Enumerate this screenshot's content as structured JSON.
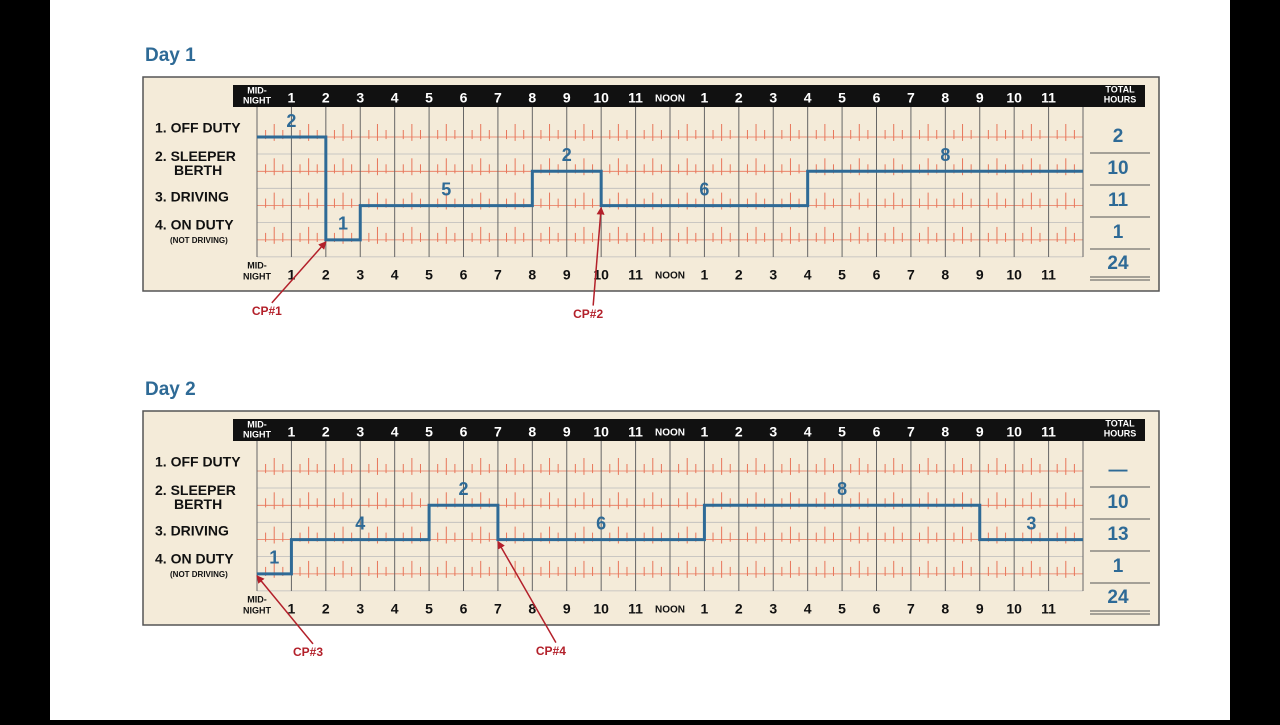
{
  "grid": {
    "midnight": [
      "MID-",
      "NIGHT"
    ],
    "hour_labels": [
      1,
      2,
      3,
      4,
      5,
      6,
      7,
      8,
      9,
      10,
      11,
      "NOON",
      1,
      2,
      3,
      4,
      5,
      6,
      7,
      8,
      9,
      10,
      11
    ],
    "total_header": [
      "TOTAL",
      "HOURS"
    ],
    "rows": [
      [
        "1. OFF DUTY"
      ],
      [
        "2. SLEEPER",
        "BERTH"
      ],
      [
        "3. DRIVING"
      ],
      [
        "4. ON DUTY",
        "(NOT DRIVING)"
      ]
    ]
  },
  "days": [
    {
      "title": "Day 1",
      "segments": [
        {
          "row": 0,
          "hours": 2
        },
        {
          "row": 3,
          "hours": 1
        },
        {
          "row": 2,
          "hours": 5
        },
        {
          "row": 1,
          "hours": 2
        },
        {
          "row": 2,
          "hours": 6
        },
        {
          "row": 1,
          "hours": 8
        }
      ],
      "totals": [
        2,
        10,
        11,
        1
      ],
      "total": 24,
      "callouts": [
        {
          "label": "CP#1",
          "hour": 2,
          "row": 3
        },
        {
          "label": "CP#2",
          "hour": 10,
          "row": 2
        }
      ]
    },
    {
      "title": "Day 2",
      "segments": [
        {
          "row": 3,
          "hours": 1
        },
        {
          "row": 2,
          "hours": 4
        },
        {
          "row": 1,
          "hours": 2
        },
        {
          "row": 2,
          "hours": 6
        },
        {
          "row": 1,
          "hours": 8
        },
        {
          "row": 2,
          "hours": 3
        }
      ],
      "totals": [
        "—",
        10,
        13,
        1
      ],
      "total": 24,
      "callouts": [
        {
          "label": "CP#3",
          "hour": 0,
          "row": 3
        },
        {
          "label": "CP#4",
          "hour": 7,
          "row": 2
        }
      ]
    }
  ]
}
